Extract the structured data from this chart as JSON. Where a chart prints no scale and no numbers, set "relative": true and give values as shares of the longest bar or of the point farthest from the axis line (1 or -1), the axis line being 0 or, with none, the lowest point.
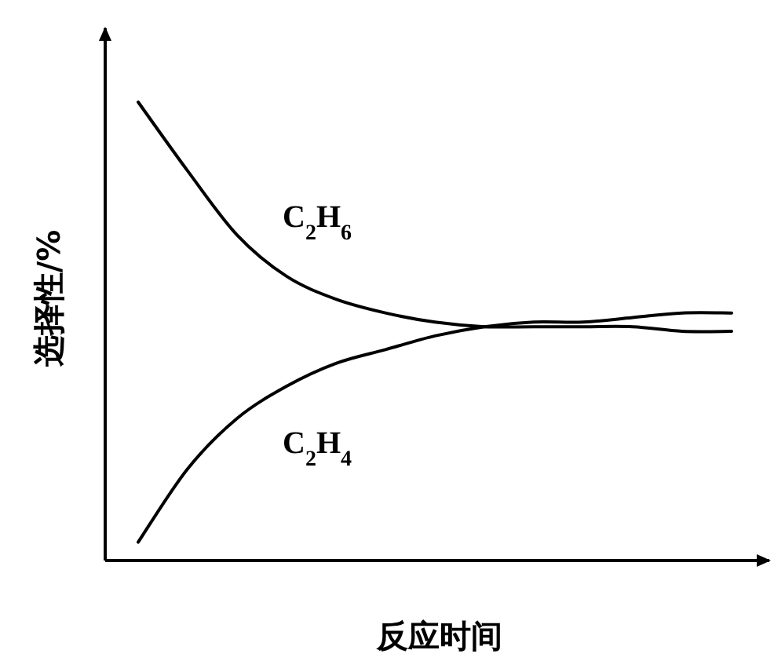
{
  "chart_data": {
    "type": "line",
    "relative": true,
    "xlabel": "反应时间",
    "ylabel": "选择性/%",
    "categories": [
      null,
      null,
      null,
      null,
      null,
      null,
      null,
      null,
      null,
      null,
      null,
      null,
      null
    ],
    "series": [
      {
        "name": "C$_{2}$H$_{6}$",
        "color": "#000000",
        "values": [
          1,
          0.85,
          0.71,
          0.62,
          0.57,
          0.54,
          0.52,
          0.51,
          0.51,
          0.51,
          0.51,
          0.5,
          0.5
        ]
      },
      {
        "name": "C$_{2}$H$_{4}$",
        "color": "#000000",
        "values": [
          0.04,
          0.2,
          0.31,
          0.38,
          0.43,
          0.46,
          0.49,
          0.51,
          0.52,
          0.52,
          0.53,
          0.54,
          0.54
        ]
      }
    ]
  }
}
